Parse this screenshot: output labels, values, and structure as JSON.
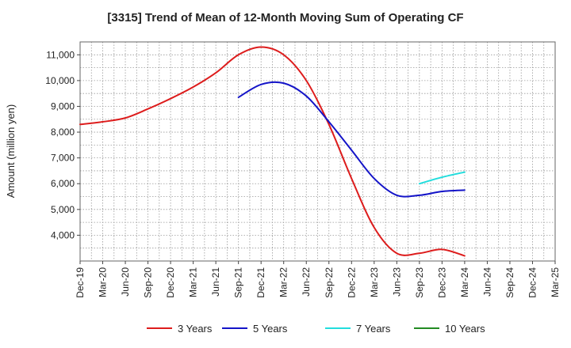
{
  "chart_data": {
    "type": "line",
    "title": "[3315]  Trend of Mean of 12-Month Moving Sum of Operating CF",
    "xlabel": "",
    "ylabel": "Amount (million yen)",
    "ylim": [
      3000,
      11500
    ],
    "yticks": [
      4000,
      5000,
      6000,
      7000,
      8000,
      9000,
      10000,
      11000
    ],
    "ytick_labels": [
      "4,000",
      "5,000",
      "6,000",
      "7,000",
      "8,000",
      "9,000",
      "10,000",
      "11,000"
    ],
    "categories": [
      "Dec-19",
      "Mar-20",
      "Jun-20",
      "Sep-20",
      "Dec-20",
      "Mar-21",
      "Jun-21",
      "Sep-21",
      "Dec-21",
      "Mar-22",
      "Jun-22",
      "Sep-22",
      "Dec-22",
      "Mar-23",
      "Jun-23",
      "Sep-23",
      "Dec-23",
      "Mar-24",
      "Jun-24",
      "Sep-24",
      "Dec-24",
      "Mar-25"
    ],
    "grid": true,
    "legend_position": "bottom",
    "series": [
      {
        "name": "3 Years",
        "color": "#dd1c1c",
        "values": [
          8300,
          8400,
          8550,
          8900,
          9300,
          9750,
          10300,
          11000,
          11300,
          11000,
          10000,
          8300,
          6200,
          4300,
          3300,
          3300,
          3450,
          3200,
          null,
          null,
          null,
          null
        ]
      },
      {
        "name": "5 Years",
        "color": "#1414c8",
        "values": [
          null,
          null,
          null,
          null,
          null,
          null,
          null,
          9350,
          9850,
          9900,
          9400,
          8400,
          7300,
          6200,
          5550,
          5550,
          5700,
          5750,
          null,
          null,
          null,
          null
        ]
      },
      {
        "name": "7 Years",
        "color": "#22dddd",
        "values": [
          null,
          null,
          null,
          null,
          null,
          null,
          null,
          null,
          null,
          null,
          null,
          null,
          null,
          null,
          null,
          6000,
          6250,
          6450,
          null,
          null,
          null,
          null
        ]
      },
      {
        "name": "10 Years",
        "color": "#228b22",
        "values": [
          null,
          null,
          null,
          null,
          null,
          null,
          null,
          null,
          null,
          null,
          null,
          null,
          null,
          null,
          null,
          null,
          null,
          null,
          null,
          null,
          null,
          null
        ]
      }
    ]
  }
}
